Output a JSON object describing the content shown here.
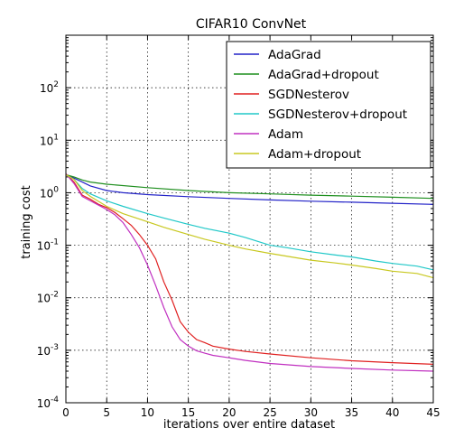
{
  "chart_data": {
    "type": "line",
    "title": "CIFAR10 ConvNet",
    "xlabel": "iterations over entire dataset",
    "ylabel": "training cost",
    "xlim": [
      0,
      45
    ],
    "ylim": [
      0.0001,
      1000
    ],
    "yscale": "log",
    "grid": "on (dotted)",
    "legend_position": "top-right",
    "x_ticks": [
      "0",
      "5",
      "10",
      "15",
      "20",
      "25",
      "30",
      "35",
      "40",
      "45"
    ],
    "y_ticks": [
      {
        "value": 0.0001,
        "base": "10",
        "exp": "-4"
      },
      {
        "value": 0.001,
        "base": "10",
        "exp": "-3"
      },
      {
        "value": 0.01,
        "base": "10",
        "exp": "-2"
      },
      {
        "value": 0.1,
        "base": "10",
        "exp": "-1"
      },
      {
        "value": 1,
        "base": "10",
        "exp": "0"
      },
      {
        "value": 10,
        "base": "10",
        "exp": "1"
      },
      {
        "value": 100,
        "base": "10",
        "exp": "2"
      }
    ],
    "series": [
      {
        "name": "AdaGrad",
        "color": "#2323c8",
        "points": [
          [
            0,
            2.2
          ],
          [
            1,
            1.9
          ],
          [
            2,
            1.6
          ],
          [
            3,
            1.35
          ],
          [
            5,
            1.1
          ],
          [
            7,
            1.0
          ],
          [
            10,
            0.92
          ],
          [
            15,
            0.84
          ],
          [
            20,
            0.78
          ],
          [
            25,
            0.73
          ],
          [
            30,
            0.69
          ],
          [
            35,
            0.66
          ],
          [
            40,
            0.63
          ],
          [
            45,
            0.6
          ]
        ]
      },
      {
        "name": "AdaGrad+dropout",
        "color": "#1f8f1f",
        "points": [
          [
            0,
            2.2
          ],
          [
            1,
            2.0
          ],
          [
            2,
            1.75
          ],
          [
            3,
            1.6
          ],
          [
            5,
            1.45
          ],
          [
            10,
            1.25
          ],
          [
            15,
            1.1
          ],
          [
            20,
            1.0
          ],
          [
            25,
            0.95
          ],
          [
            30,
            0.9
          ],
          [
            35,
            0.86
          ],
          [
            40,
            0.82
          ],
          [
            45,
            0.78
          ]
        ]
      },
      {
        "name": "SGDNesterov",
        "color": "#e02020",
        "points": [
          [
            0,
            2.3
          ],
          [
            1,
            1.6
          ],
          [
            2,
            0.9
          ],
          [
            3,
            0.75
          ],
          [
            4,
            0.6
          ],
          [
            5,
            0.52
          ],
          [
            6,
            0.42
          ],
          [
            7,
            0.32
          ],
          [
            8,
            0.24
          ],
          [
            9,
            0.16
          ],
          [
            10,
            0.1
          ],
          [
            11,
            0.055
          ],
          [
            12,
            0.02
          ],
          [
            13,
            0.009
          ],
          [
            14,
            0.0035
          ],
          [
            15,
            0.0022
          ],
          [
            16,
            0.0016
          ],
          [
            17,
            0.0014
          ],
          [
            18,
            0.0012
          ],
          [
            20,
            0.00105
          ],
          [
            22,
            0.00095
          ],
          [
            25,
            0.00085
          ],
          [
            30,
            0.00072
          ],
          [
            35,
            0.00063
          ],
          [
            40,
            0.00058
          ],
          [
            45,
            0.00054
          ]
        ]
      },
      {
        "name": "SGDNesterov+dropout",
        "color": "#20c8c8",
        "points": [
          [
            0,
            2.2
          ],
          [
            1,
            1.8
          ],
          [
            2,
            1.2
          ],
          [
            3,
            0.95
          ],
          [
            5,
            0.7
          ],
          [
            7,
            0.55
          ],
          [
            10,
            0.4
          ],
          [
            12,
            0.33
          ],
          [
            15,
            0.25
          ],
          [
            17,
            0.21
          ],
          [
            20,
            0.17
          ],
          [
            22,
            0.14
          ],
          [
            25,
            0.1
          ],
          [
            27,
            0.09
          ],
          [
            30,
            0.075
          ],
          [
            33,
            0.065
          ],
          [
            35,
            0.06
          ],
          [
            38,
            0.05
          ],
          [
            40,
            0.045
          ],
          [
            43,
            0.04
          ],
          [
            45,
            0.034
          ]
        ]
      },
      {
        "name": "Adam",
        "color": "#c030c0",
        "points": [
          [
            0,
            2.3
          ],
          [
            1,
            1.5
          ],
          [
            2,
            0.85
          ],
          [
            3,
            0.7
          ],
          [
            4,
            0.58
          ],
          [
            5,
            0.48
          ],
          [
            6,
            0.38
          ],
          [
            7,
            0.27
          ],
          [
            8,
            0.16
          ],
          [
            9,
            0.09
          ],
          [
            10,
            0.042
          ],
          [
            11,
            0.017
          ],
          [
            12,
            0.0065
          ],
          [
            13,
            0.0028
          ],
          [
            14,
            0.0016
          ],
          [
            15,
            0.0012
          ],
          [
            16,
            0.00098
          ],
          [
            17,
            0.00088
          ],
          [
            18,
            0.0008
          ],
          [
            20,
            0.00072
          ],
          [
            22,
            0.00064
          ],
          [
            25,
            0.00056
          ],
          [
            30,
            0.00049
          ],
          [
            35,
            0.00045
          ],
          [
            40,
            0.00042
          ],
          [
            45,
            0.0004
          ]
        ]
      },
      {
        "name": "Adam+dropout",
        "color": "#c8c820",
        "points": [
          [
            0,
            2.2
          ],
          [
            1,
            1.8
          ],
          [
            2,
            1.1
          ],
          [
            3,
            0.85
          ],
          [
            5,
            0.55
          ],
          [
            7,
            0.4
          ],
          [
            10,
            0.28
          ],
          [
            12,
            0.22
          ],
          [
            15,
            0.16
          ],
          [
            17,
            0.13
          ],
          [
            20,
            0.1
          ],
          [
            22,
            0.085
          ],
          [
            25,
            0.07
          ],
          [
            27,
            0.062
          ],
          [
            30,
            0.052
          ],
          [
            33,
            0.046
          ],
          [
            35,
            0.042
          ],
          [
            38,
            0.036
          ],
          [
            40,
            0.032
          ],
          [
            43,
            0.029
          ],
          [
            45,
            0.024
          ]
        ]
      }
    ]
  }
}
